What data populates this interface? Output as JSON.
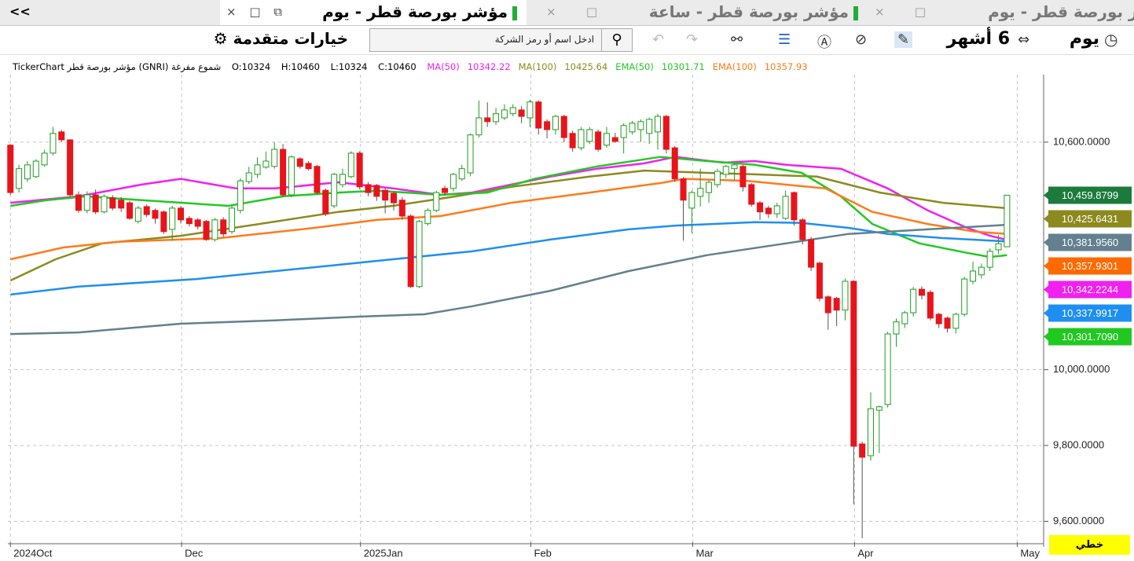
{
  "ui": {
    "back": "<<",
    "tabs": [
      "مؤشر بورصة قطر - يوم",
      "مؤشر بورصة قطر - ساعة",
      "مؤشر بورصة قطر - يوم"
    ],
    "period": "يوم",
    "range": "6 أشهر",
    "search_placeholder": "ادخل اسم أو رمز الشركة",
    "advanced": "خيارات متقدمة",
    "info_title": "TickerChart مؤشر بورصة قطر (GNRI)  شموع مفرغة",
    "info_ohlc": [
      "O:10324",
      "H:10460",
      "L:10324",
      "C:10460"
    ],
    "line_mode": "خطي"
  },
  "chart_data": {
    "type": "candlestick",
    "xlim": [
      -0.3,
      121.3
    ],
    "xticks": [
      {
        "value": 0,
        "label": "2024Oct"
      },
      {
        "value": 20.1,
        "label": "Dec"
      },
      {
        "value": 41.1,
        "label": "2025Jan"
      },
      {
        "value": 61.1,
        "label": "Feb"
      },
      {
        "value": 80.1,
        "label": "Mar"
      },
      {
        "value": 99.1,
        "label": "Apr"
      },
      {
        "value": 118.2,
        "label": "May"
      }
    ],
    "ylim": [
      9545,
      10778
    ],
    "yticks": [
      {
        "value": 9600,
        "label": "9,600.0000"
      },
      {
        "value": 9800,
        "label": "9,800.0000"
      },
      {
        "value": 10000,
        "label": "10,000.0000"
      },
      {
        "value": 10600,
        "label": "10,600.0000"
      }
    ],
    "grid": true,
    "up_fill": "#ffffff",
    "up_stroke": "#1f9d1f",
    "down_fill": "#e8141b",
    "candles": {
      "open": [
        10592,
        10478,
        10503,
        10509,
        10540,
        10571,
        10627,
        10606,
        10461,
        10420,
        10461,
        10416,
        10453,
        10447,
        10440,
        10391,
        10430,
        10420,
        10416,
        10370,
        10426,
        10399,
        10395,
        10391,
        10343,
        10395,
        10364,
        10420,
        10496,
        10515,
        10534,
        10536,
        10581,
        10461,
        10556,
        10544,
        10536,
        10473,
        10432,
        10488,
        10509,
        10571,
        10488,
        10486,
        10473,
        10465,
        10447,
        10405,
        10219,
        10385,
        10420,
        10478,
        10478,
        10503,
        10519,
        10619,
        10664,
        10654,
        10664,
        10675,
        10685,
        10664,
        10706,
        10654,
        10633,
        10668,
        10623,
        10585,
        10602,
        10627,
        10592,
        10612,
        10612,
        10627,
        10633,
        10623,
        10627,
        10668,
        10585,
        10503,
        10426,
        10457,
        10467,
        10488,
        10515,
        10530,
        10536,
        10488,
        10440,
        10426,
        10411,
        10399,
        10467,
        10395,
        10343,
        10281,
        10192,
        10188,
        10157,
        10233,
        9804,
        9773,
        9893,
        9908,
        10094,
        10121,
        10150,
        10212,
        10204,
        10146,
        10136,
        10109,
        10146,
        10233,
        10250,
        10270,
        10316,
        10324
      ],
      "high": [
        10594,
        10540,
        10550,
        10555,
        10580,
        10640,
        10632,
        10608,
        10470,
        10470,
        10475,
        10462,
        10460,
        10455,
        10445,
        10432,
        10436,
        10425,
        10420,
        10432,
        10432,
        10405,
        10400,
        10395,
        10400,
        10402,
        10432,
        10505,
        10535,
        10560,
        10575,
        10600,
        10595,
        10565,
        10560,
        10550,
        10540,
        10478,
        10519,
        10530,
        10576,
        10576,
        10495,
        10490,
        10478,
        10470,
        10455,
        10410,
        10395,
        10426,
        10472,
        10485,
        10519,
        10540,
        10623,
        10710,
        10705,
        10690,
        10700,
        10700,
        10695,
        10712,
        10710,
        10660,
        10672,
        10672,
        10630,
        10640,
        10640,
        10633,
        10640,
        10625,
        10650,
        10656,
        10660,
        10665,
        10675,
        10672,
        10590,
        10508,
        10472,
        10530,
        10500,
        10530,
        10540,
        10545,
        10540,
        10492,
        10445,
        10432,
        10440,
        10472,
        10470,
        10400,
        10350,
        10285,
        10196,
        10192,
        10240,
        10236,
        9810,
        9940,
        9905,
        10100,
        10135,
        10155,
        10218,
        10220,
        10210,
        10150,
        10140,
        10150,
        10245,
        10285,
        10280,
        10320,
        10355,
        10460
      ],
      "low": [
        10461,
        10467,
        10495,
        10505,
        10535,
        10565,
        10600,
        10455,
        10414,
        10412,
        10410,
        10412,
        10420,
        10416,
        10395,
        10385,
        10402,
        10385,
        10358,
        10340,
        10385,
        10378,
        10370,
        10340,
        10338,
        10350,
        10358,
        10412,
        10490,
        10505,
        10530,
        10530,
        10455,
        10455,
        10530,
        10525,
        10462,
        10405,
        10426,
        10480,
        10505,
        10476,
        10457,
        10445,
        10412,
        10420,
        10395,
        10215,
        10215,
        10380,
        10415,
        10460,
        10470,
        10498,
        10510,
        10612,
        10640,
        10645,
        10658,
        10668,
        10650,
        10640,
        10620,
        10610,
        10620,
        10600,
        10575,
        10578,
        10595,
        10575,
        10585,
        10598,
        10570,
        10620,
        10600,
        10595,
        10580,
        10570,
        10495,
        10340,
        10360,
        10430,
        10440,
        10480,
        10505,
        10500,
        10470,
        10430,
        10395,
        10400,
        10400,
        10395,
        10380,
        10330,
        10260,
        10180,
        10105,
        10115,
        10130,
        9645,
        9555,
        9760,
        9780,
        9900,
        10060,
        10110,
        10140,
        10185,
        10130,
        10110,
        10098,
        10095,
        10140,
        10225,
        10240,
        10260,
        10305,
        10324
      ],
      "close": [
        10467,
        10530,
        10540,
        10550,
        10571,
        10623,
        10606,
        10461,
        10420,
        10461,
        10416,
        10457,
        10426,
        10426,
        10399,
        10426,
        10409,
        10399,
        10364,
        10426,
        10395,
        10385,
        10378,
        10343,
        10395,
        10358,
        10426,
        10498,
        10519,
        10540,
        10550,
        10581,
        10461,
        10561,
        10536,
        10530,
        10467,
        10411,
        10515,
        10515,
        10571,
        10482,
        10467,
        10457,
        10447,
        10440,
        10405,
        10219,
        10391,
        10420,
        10467,
        10467,
        10515,
        10530,
        10619,
        10664,
        10654,
        10675,
        10685,
        10691,
        10668,
        10706,
        10637,
        10633,
        10668,
        10612,
        10585,
        10633,
        10633,
        10581,
        10623,
        10602,
        10644,
        10650,
        10654,
        10660,
        10668,
        10581,
        10503,
        10447,
        10467,
        10478,
        10494,
        10523,
        10536,
        10540,
        10482,
        10436,
        10416,
        10411,
        10432,
        10457,
        10395,
        10343,
        10270,
        10188,
        10150,
        10157,
        10233,
        9798,
        9769,
        9897,
        9902,
        10094,
        10126,
        10150,
        10212,
        10196,
        10136,
        10121,
        10109,
        10146,
        10239,
        10260,
        10270,
        10312,
        10332,
        10460
      ]
    },
    "lines": [
      {
        "name": "MA(50)",
        "legend_value": 10342.22,
        "color": "#f020f0",
        "x": [
          0,
          8,
          15.4,
          20,
          26.5,
          31.1,
          38.5,
          44.9,
          50.5,
          54.2,
          58.8,
          63.4,
          68.9,
          74.4,
          78.1,
          83.7,
          87.4,
          91.1,
          97.5,
          103,
          107.7,
          112.3,
          115,
          117
        ],
        "values": [
          10440,
          10457,
          10488,
          10503,
          10478,
          10478,
          10494,
          10478,
          10461,
          10467,
          10488,
          10509,
          10530,
          10544,
          10561,
          10546,
          10550,
          10540,
          10530,
          10478,
          10420,
          10374,
          10353,
          10342.22
        ]
      },
      {
        "name": "MA(100)",
        "legend_value": 10425.64,
        "color": "#8c8a1e",
        "x": [
          0,
          5.3,
          10.8,
          20,
          29.2,
          38.5,
          44.9,
          52.3,
          58.8,
          68,
          74.4,
          81.8,
          87.4,
          94.7,
          102.1,
          109.5,
          117
        ],
        "values": [
          10235,
          10291,
          10333,
          10353,
          10384,
          10416,
          10432,
          10457,
          10482,
          10509,
          10525,
          10519,
          10515,
          10509,
          10467,
          10440,
          10425.64
        ]
      },
      {
        "name": "EMA(50)",
        "legend_value": 10301.71,
        "color": "#22c822",
        "x": [
          0,
          4.3,
          8.9,
          15.4,
          25.6,
          32,
          38.5,
          43.1,
          50.5,
          56,
          61.5,
          68.9,
          76.3,
          81.8,
          87.4,
          92.9,
          97.5,
          101.2,
          106.7,
          112.3,
          115,
          117
        ],
        "values": [
          10432,
          10447,
          10457,
          10447,
          10432,
          10457,
          10467,
          10472,
          10461,
          10467,
          10503,
          10536,
          10561,
          10550,
          10540,
          10519,
          10457,
          10384,
          10333,
          10308,
          10297,
          10301.71
        ]
      },
      {
        "name": "EMA(100)",
        "legend_value": 10357.93,
        "color": "#ff7a1a",
        "x": [
          0,
          6.2,
          12.6,
          24.6,
          35.7,
          43.1,
          50.5,
          58.8,
          68,
          76.3,
          79.1,
          86.4,
          95.7,
          101.2,
          107.7,
          113.2,
          117
        ],
        "values": [
          10291,
          10322,
          10337,
          10347,
          10374,
          10395,
          10405,
          10440,
          10467,
          10492,
          10503,
          10498,
          10478,
          10416,
          10384,
          10364,
          10357.93
        ]
      },
      {
        "color": "#1e8ff0",
        "x": [
          0,
          8,
          21.9,
          35.7,
          44.9,
          54.2,
          63.4,
          72.6,
          78.1,
          87.4,
          92.9,
          98.4,
          103,
          109.5,
          117
        ],
        "values": [
          10198,
          10219,
          10239,
          10270,
          10291,
          10312,
          10343,
          10370,
          10380,
          10389,
          10387,
          10374,
          10358,
          10347,
          10337.99
        ]
      },
      {
        "color": "#62808f",
        "x": [
          0,
          8,
          20,
          31.1,
          41.2,
          48.6,
          54.2,
          63.4,
          72.6,
          81.8,
          91.1,
          98.4,
          107.7,
          117
        ],
        "values": [
          10094,
          10098,
          10121,
          10130,
          10140,
          10146,
          10167,
          10208,
          10260,
          10302,
          10333,
          10358,
          10370,
          10381.96
        ]
      }
    ],
    "badges": [
      {
        "value": 10459.8799,
        "label": "10,459.8799",
        "color": "#1b7a3c"
      },
      {
        "value": 10425.6431,
        "label": "10,425.6431",
        "color": "#8c8a1e"
      },
      {
        "value": 10381.956,
        "label": "10,381.9560",
        "color": "#62808f"
      },
      {
        "value": 10357.9301,
        "label": "10,357.9301",
        "color": "#ff6a00"
      },
      {
        "value": 10342.2244,
        "label": "10,342.2244",
        "color": "#f020f0"
      },
      {
        "value": 10337.9917,
        "label": "10,337.9917",
        "color": "#1e8ff0"
      },
      {
        "value": 10301.709,
        "label": "10,301.7090",
        "color": "#22c822"
      }
    ]
  }
}
